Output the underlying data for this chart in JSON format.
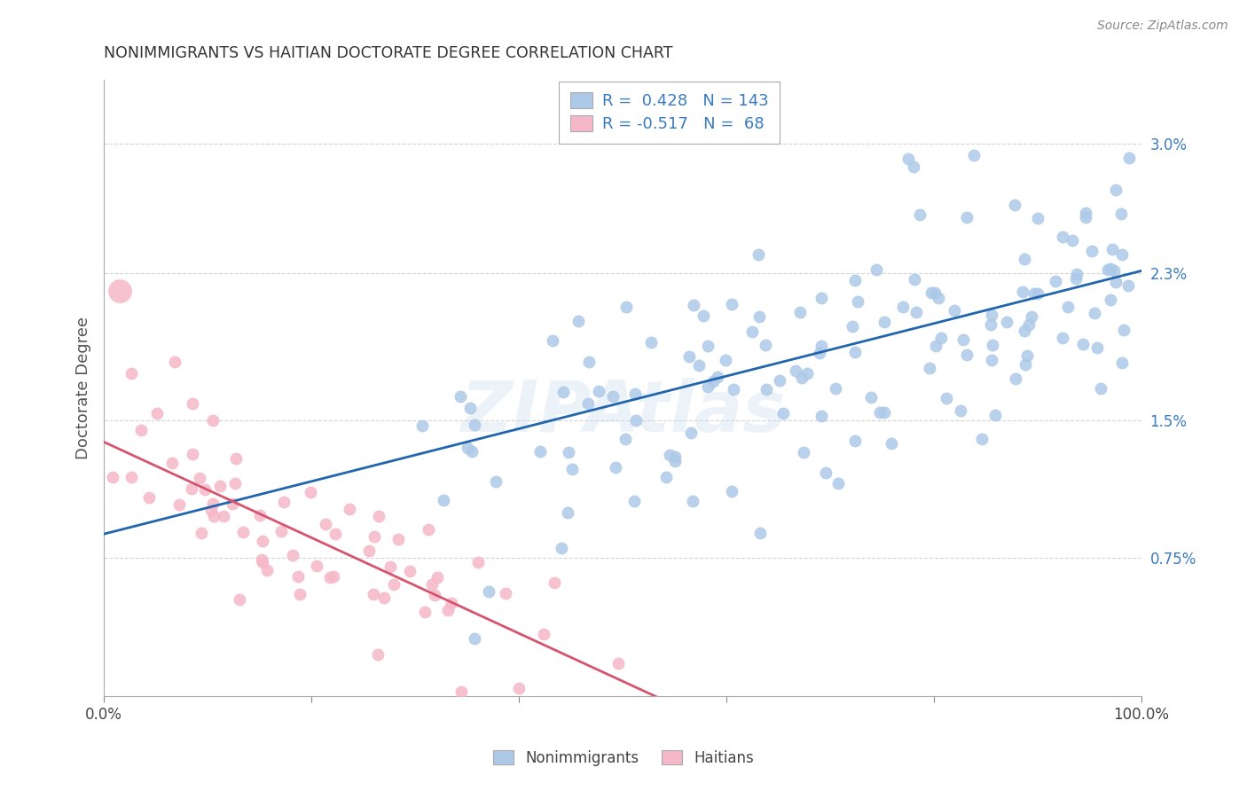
{
  "title": "NONIMMIGRANTS VS HAITIAN DOCTORATE DEGREE CORRELATION CHART",
  "source": "Source: ZipAtlas.com",
  "ylabel": "Doctorate Degree",
  "xlim": [
    0,
    100
  ],
  "ylim": [
    0.0,
    3.35
  ],
  "yticks": [
    0.75,
    1.5,
    2.3,
    3.0
  ],
  "ytick_labels": [
    "0.75%",
    "1.5%",
    "2.3%",
    "3.0%"
  ],
  "blue_R": 0.428,
  "blue_N": 143,
  "pink_R": -0.517,
  "pink_N": 68,
  "blue_dot_color": "#adc9e8",
  "pink_dot_color": "#f5b8c8",
  "blue_line_color": "#2166ac",
  "pink_line_color": "#d6546e",
  "text_color": "#3a7bbf",
  "watermark": "ZIPAtlas",
  "legend_label_blue": "Nonimmigrants",
  "legend_label_pink": "Haitians",
  "background_color": "#ffffff",
  "grid_color": "#d0d0d0",
  "blue_line_intercept": 0.88,
  "blue_line_slope": 0.0143,
  "pink_line_intercept": 1.38,
  "pink_line_slope": -0.026
}
